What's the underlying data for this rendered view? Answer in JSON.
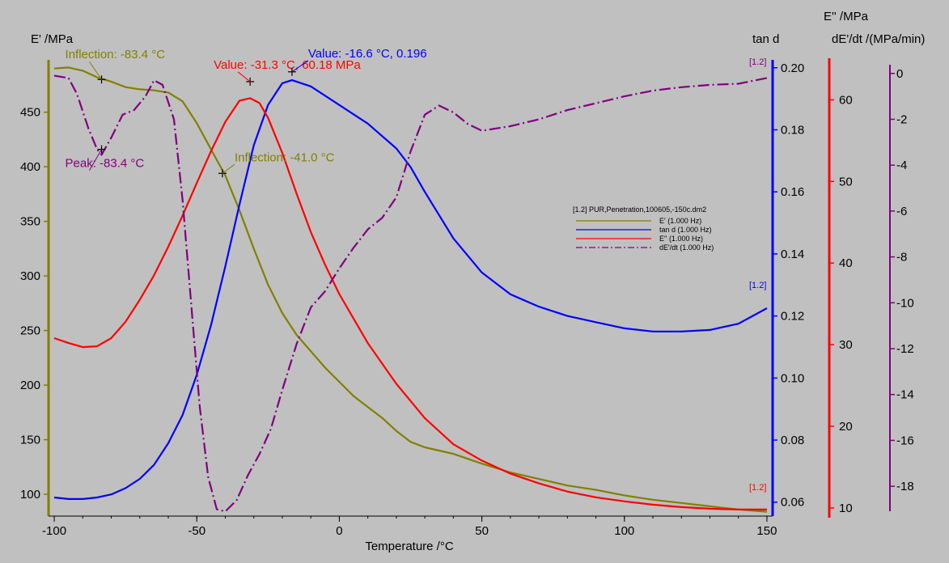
{
  "chart_data": {
    "type": "line",
    "xlabel": "Temperature /°C",
    "x_range": [
      -102,
      152
    ],
    "x_ticks": [
      -100,
      -50,
      0,
      50,
      100,
      150
    ],
    "axes": {
      "eprime": {
        "label": "E' /MPa",
        "range": [
          80,
          495
        ],
        "ticks": [
          100,
          150,
          200,
          250,
          300,
          350,
          400,
          450
        ],
        "color": "#808000"
      },
      "tand": {
        "label": "tan d",
        "range": [
          0.0555,
          0.2015
        ],
        "ticks": [
          "0.06",
          "0.08",
          "0.10",
          "0.12",
          "0.14",
          "0.16",
          "0.18",
          "0.20"
        ],
        "color": "#0000ff"
      },
      "edprime": {
        "label": "E'' /MPa",
        "range": [
          9.0,
          64.5
        ],
        "ticks": [
          10,
          20,
          30,
          40,
          50,
          60
        ],
        "color": "#ff0000"
      },
      "dedt": {
        "label": "dE'/dt /(MPa/min)",
        "range": [
          -19.3,
          0.45
        ],
        "ticks": [
          0,
          -2,
          -4,
          -6,
          -8,
          -10,
          -12,
          -14,
          -16,
          -18
        ],
        "color": "#800080"
      }
    },
    "series": [
      {
        "name": "E' (1.000 Hz)",
        "axis": "eprime",
        "color": "#808000",
        "dash": "",
        "points": [
          [
            -100,
            490
          ],
          [
            -95,
            491
          ],
          [
            -90,
            488
          ],
          [
            -85,
            482
          ],
          [
            -80,
            478
          ],
          [
            -75,
            473
          ],
          [
            -70,
            471
          ],
          [
            -65,
            470
          ],
          [
            -60,
            468
          ],
          [
            -55,
            460
          ],
          [
            -50,
            440
          ],
          [
            -45,
            416
          ],
          [
            -40,
            392
          ],
          [
            -35,
            360
          ],
          [
            -30,
            325
          ],
          [
            -25,
            292
          ],
          [
            -20,
            266
          ],
          [
            -15,
            246
          ],
          [
            -10,
            231
          ],
          [
            -5,
            216
          ],
          [
            0,
            203
          ],
          [
            5,
            190
          ],
          [
            10,
            180
          ],
          [
            15,
            170
          ],
          [
            20,
            158
          ],
          [
            25,
            148
          ],
          [
            30,
            143
          ],
          [
            35,
            140
          ],
          [
            40,
            137
          ],
          [
            50,
            128
          ],
          [
            60,
            120
          ],
          [
            70,
            114
          ],
          [
            80,
            108
          ],
          [
            90,
            104
          ],
          [
            100,
            99
          ],
          [
            110,
            95
          ],
          [
            120,
            92
          ],
          [
            130,
            89
          ],
          [
            140,
            86
          ],
          [
            150,
            84
          ]
        ]
      },
      {
        "name": "tan d (1.000 Hz)",
        "axis": "tand",
        "color": "#0000ff",
        "dash": "",
        "points": [
          [
            -100,
            0.0615
          ],
          [
            -95,
            0.061
          ],
          [
            -90,
            0.061
          ],
          [
            -85,
            0.0615
          ],
          [
            -80,
            0.0625
          ],
          [
            -75,
            0.0645
          ],
          [
            -70,
            0.0675
          ],
          [
            -65,
            0.072
          ],
          [
            -60,
            0.079
          ],
          [
            -55,
            0.088
          ],
          [
            -50,
            0.101
          ],
          [
            -45,
            0.117
          ],
          [
            -40,
            0.136
          ],
          [
            -35,
            0.156
          ],
          [
            -30,
            0.175
          ],
          [
            -25,
            0.188
          ],
          [
            -20,
            0.195
          ],
          [
            -16.6,
            0.196
          ],
          [
            -10,
            0.194
          ],
          [
            0,
            0.188
          ],
          [
            10,
            0.182
          ],
          [
            20,
            0.174
          ],
          [
            25,
            0.168
          ],
          [
            30,
            0.16
          ],
          [
            40,
            0.145
          ],
          [
            50,
            0.134
          ],
          [
            60,
            0.127
          ],
          [
            70,
            0.123
          ],
          [
            80,
            0.12
          ],
          [
            90,
            0.118
          ],
          [
            100,
            0.116
          ],
          [
            110,
            0.115
          ],
          [
            120,
            0.115
          ],
          [
            130,
            0.1155
          ],
          [
            140,
            0.1175
          ],
          [
            150,
            0.1225
          ]
        ]
      },
      {
        "name": "E'' (1.000 Hz)",
        "axis": "edprime",
        "color": "#ff0000",
        "dash": "",
        "points": [
          [
            -100,
            30.8
          ],
          [
            -95,
            30.2
          ],
          [
            -90,
            29.7
          ],
          [
            -85,
            29.8
          ],
          [
            -80,
            30.8
          ],
          [
            -75,
            32.8
          ],
          [
            -70,
            35.5
          ],
          [
            -65,
            38.5
          ],
          [
            -60,
            42.0
          ],
          [
            -55,
            45.8
          ],
          [
            -50,
            49.8
          ],
          [
            -45,
            53.7
          ],
          [
            -40,
            57.3
          ],
          [
            -35,
            59.9
          ],
          [
            -31.3,
            60.2
          ],
          [
            -28,
            59.6
          ],
          [
            -25,
            57.8
          ],
          [
            -20,
            53.5
          ],
          [
            -15,
            48.5
          ],
          [
            -10,
            43.8
          ],
          [
            -5,
            39.8
          ],
          [
            0,
            36.2
          ],
          [
            10,
            30.2
          ],
          [
            20,
            25.2
          ],
          [
            30,
            21.0
          ],
          [
            40,
            17.8
          ],
          [
            50,
            15.8
          ],
          [
            60,
            14.2
          ],
          [
            70,
            13.0
          ],
          [
            80,
            12.0
          ],
          [
            90,
            11.3
          ],
          [
            100,
            10.8
          ],
          [
            110,
            10.4
          ],
          [
            120,
            10.1
          ],
          [
            130,
            9.9
          ],
          [
            140,
            9.8
          ],
          [
            150,
            9.8
          ]
        ]
      },
      {
        "name": "dE'/dt (1.000 Hz)",
        "axis": "dedt",
        "color": "#800080",
        "dash": "14 4 2 4",
        "points": [
          [
            -100,
            -0.1
          ],
          [
            -95,
            -0.2
          ],
          [
            -92,
            -0.9
          ],
          [
            -88,
            -2.4
          ],
          [
            -85,
            -3.3
          ],
          [
            -83.4,
            -3.55
          ],
          [
            -80,
            -2.8
          ],
          [
            -76,
            -1.8
          ],
          [
            -72,
            -1.6
          ],
          [
            -68,
            -1.0
          ],
          [
            -65,
            -0.3
          ],
          [
            -62,
            -0.5
          ],
          [
            -58,
            -2.0
          ],
          [
            -55,
            -5.5
          ],
          [
            -52,
            -10.0
          ],
          [
            -49,
            -14.5
          ],
          [
            -46,
            -17.6
          ],
          [
            -43,
            -19.0
          ],
          [
            -40,
            -19.1
          ],
          [
            -36,
            -18.6
          ],
          [
            -32,
            -17.5
          ],
          [
            -28,
            -16.6
          ],
          [
            -24,
            -15.5
          ],
          [
            -20,
            -13.8
          ],
          [
            -15,
            -11.8
          ],
          [
            -10,
            -10.2
          ],
          [
            -5,
            -9.5
          ],
          [
            0,
            -8.5
          ],
          [
            5,
            -7.6
          ],
          [
            10,
            -6.8
          ],
          [
            15,
            -6.3
          ],
          [
            20,
            -5.4
          ],
          [
            25,
            -3.4
          ],
          [
            30,
            -1.8
          ],
          [
            35,
            -1.4
          ],
          [
            40,
            -1.7
          ],
          [
            45,
            -2.2
          ],
          [
            50,
            -2.5
          ],
          [
            55,
            -2.4
          ],
          [
            60,
            -2.3
          ],
          [
            70,
            -2.0
          ],
          [
            80,
            -1.6
          ],
          [
            90,
            -1.3
          ],
          [
            100,
            -1.0
          ],
          [
            110,
            -0.75
          ],
          [
            120,
            -0.6
          ],
          [
            130,
            -0.5
          ],
          [
            140,
            -0.45
          ],
          [
            150,
            -0.2
          ]
        ]
      }
    ],
    "annotations": [
      {
        "text": "Inflection: -83.4 °C",
        "color": "#808000",
        "axis": "eprime",
        "x": -83.4,
        "y": 480
      },
      {
        "text": "Value: -31.3 °C, 60.18 MPa",
        "color": "#ff0000",
        "axis": "eprime",
        "x": -31.3,
        "y": 478
      },
      {
        "text": "Value: -16.6 °C, 0.196",
        "color": "#0000ff",
        "axis": "eprime",
        "x": -16.6,
        "y": 487
      },
      {
        "text": "Inflection: -41.0 °C",
        "color": "#808000",
        "axis": "eprime",
        "x": -41.0,
        "y": 394
      },
      {
        "text": "Peak: -83.4 °C",
        "color": "#800080",
        "axis": "eprime",
        "x": -83.4,
        "y": 416
      }
    ],
    "legend_title": "[1.2] PUR,Penetration,100605,-150c.dm2",
    "curve_tags": [
      {
        "text": "[1.2]",
        "color": "#800080"
      },
      {
        "text": "[1.2]",
        "color": "#0000ff"
      },
      {
        "text": "[1.2]",
        "color": "#ff0000"
      }
    ]
  }
}
